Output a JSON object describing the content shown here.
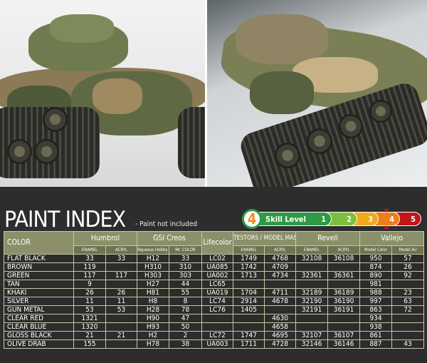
{
  "header": {
    "title": "PAINT INDEX",
    "subtitle": "- Paint not included"
  },
  "skill": {
    "label": "Skill Level",
    "level": "4",
    "levels": [
      "1",
      "2",
      "3",
      "4",
      "5"
    ],
    "colors": [
      "#2e9a45",
      "#7cbf3a",
      "#f2a91c",
      "#ef7d18",
      "#c0151b"
    ]
  },
  "table": {
    "groups": [
      "COLOR",
      "Humbrol",
      "GSI Creos",
      "Lifecolor",
      "TESTORS / MODEL MASTER",
      "Revell",
      "Vallejo"
    ],
    "subheaders": [
      "ENAMEL",
      "ACRYL",
      "Aqueous Hobby Color",
      "Mr. COLOR",
      "ENAMEL",
      "ACRYL",
      "ENAMEL",
      "ACRYL",
      "Model Color",
      "Model Air"
    ],
    "rows": [
      [
        "FLAT BLACK",
        "33",
        "33",
        "H12",
        "33",
        "LC02",
        "1749",
        "4768",
        "32108",
        "36108",
        "950",
        "57"
      ],
      [
        "BROWN",
        "119",
        "",
        "H310",
        "310",
        "UA085",
        "1742",
        "4709",
        "",
        "",
        "874",
        "26"
      ],
      [
        "GREEN",
        "117",
        "117",
        "H303",
        "303",
        "UA002",
        "1713",
        "4734",
        "32361",
        "36361",
        "890",
        "92"
      ],
      [
        "TAN",
        "9",
        "",
        "H27",
        "44",
        "LC65",
        "",
        "",
        "",
        "",
        "981",
        ""
      ],
      [
        "KHAKI",
        "26",
        "26",
        "H81",
        "55",
        "UA019",
        "1704",
        "4711",
        "32189",
        "36189",
        "988",
        "23"
      ],
      [
        "SILVER",
        "11",
        "11",
        "H8",
        "8",
        "LC74",
        "2914",
        "4678",
        "32190",
        "36190",
        "997",
        "63"
      ],
      [
        "GUN METAL",
        "53",
        "53",
        "H28",
        "78",
        "LC76",
        "1405",
        "",
        "32191",
        "36191",
        "863",
        "72"
      ],
      [
        "CLEAR RED",
        "1321",
        "",
        "H90",
        "47",
        "",
        "",
        "4630",
        "",
        "",
        "934",
        ""
      ],
      [
        "CLEAR BLUE",
        "1320",
        "",
        "H93",
        "50",
        "",
        "",
        "4658",
        "",
        "",
        "938",
        ""
      ],
      [
        "GLOSS BLACK",
        "21",
        "21",
        "H2",
        "2",
        "LC72",
        "1747",
        "4695",
        "32107",
        "36107",
        "861",
        ""
      ],
      [
        "OLIVE DRAB",
        "155",
        "",
        "H78",
        "38",
        "UA003",
        "1711",
        "4728",
        "32146",
        "36146",
        "887",
        "43"
      ]
    ]
  }
}
